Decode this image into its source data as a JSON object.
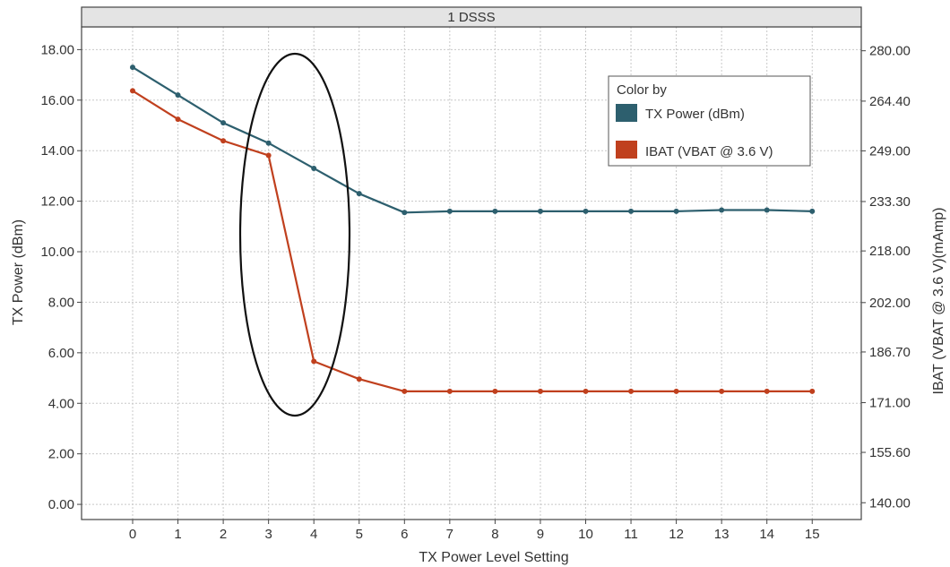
{
  "chart_data": {
    "type": "line",
    "title": "1 DSSS",
    "xlabel": "TX Power Level Setting",
    "ylabel": "TX Power (dBm)",
    "y2label": "IBAT (VBAT @ 3.6 V)(mAmp)",
    "categories": [
      0,
      1,
      2,
      3,
      4,
      5,
      6,
      7,
      8,
      9,
      10,
      11,
      12,
      13,
      14,
      15
    ],
    "ylim": [
      -0.6,
      18.9
    ],
    "y2lim": [
      134.8,
      287.4
    ],
    "yticks": [
      "0.00",
      "2.00",
      "4.00",
      "6.00",
      "8.00",
      "10.00",
      "12.00",
      "14.00",
      "16.00",
      "18.00"
    ],
    "y2ticks": [
      "140.00",
      "155.60",
      "171.00",
      "186.70",
      "202.00",
      "218.00",
      "233.30",
      "249.00",
      "264.40",
      "280.00"
    ],
    "grid": true,
    "legend": {
      "title": "Color by",
      "position": "top-right"
    },
    "series": [
      {
        "name": "TX Power (dBm)",
        "axis": "left",
        "color": "#2d5f6e",
        "values": [
          17.3,
          16.2,
          15.1,
          14.3,
          13.3,
          12.3,
          11.55,
          11.6,
          11.6,
          11.6,
          11.6,
          11.6,
          11.6,
          11.65,
          11.65,
          11.6
        ]
      },
      {
        "name": "IBAT (VBAT @ 3.6 V)",
        "axis": "right",
        "color": "#c0401e",
        "values": [
          267.6,
          258.8,
          252.1,
          247.6,
          183.8,
          178.3,
          174.5,
          174.5,
          174.5,
          174.5,
          174.5,
          174.5,
          174.5,
          174.5,
          174.5,
          174.5
        ]
      }
    ]
  }
}
